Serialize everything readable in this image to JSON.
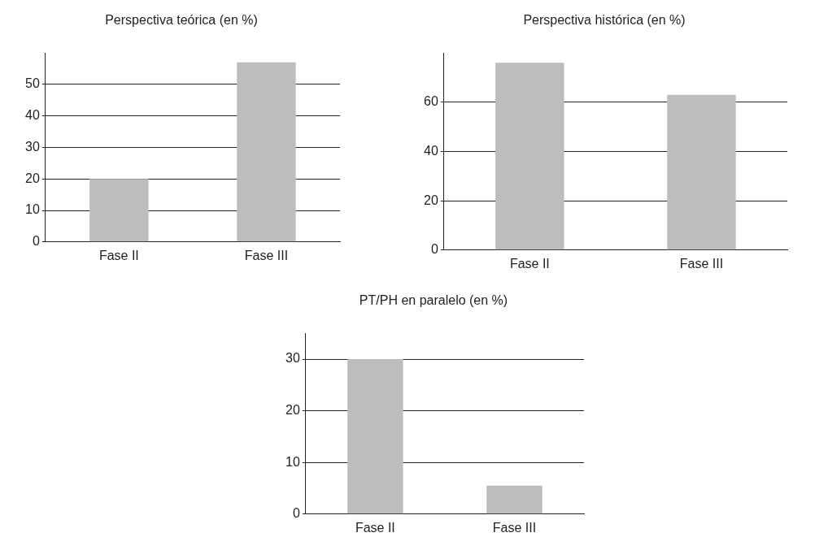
{
  "chart_data": [
    {
      "type": "bar",
      "title": "Perspectiva teórica (en %)",
      "categories": [
        "Fase II",
        "Fase III"
      ],
      "values": [
        20,
        57
      ],
      "color": "#bdbdbd",
      "ylim": [
        0,
        60
      ],
      "yticks": [
        0,
        10,
        20,
        30,
        40,
        50
      ],
      "grid": "y"
    },
    {
      "type": "bar",
      "title": "Perspectiva histórica (en %)",
      "categories": [
        "Fase II",
        "Fase III"
      ],
      "values": [
        76,
        63
      ],
      "color": "#bdbdbd",
      "ylim": [
        0,
        80
      ],
      "yticks": [
        0,
        20,
        40,
        60
      ],
      "grid": "y"
    },
    {
      "type": "bar",
      "title": "PT/PH en paralelo (en %)",
      "categories": [
        "Fase II",
        "Fase III"
      ],
      "values": [
        30,
        5.5
      ],
      "color": "#bdbdbd",
      "ylim": [
        0,
        35
      ],
      "yticks": [
        0,
        10,
        20,
        30
      ],
      "grid": "y"
    }
  ]
}
